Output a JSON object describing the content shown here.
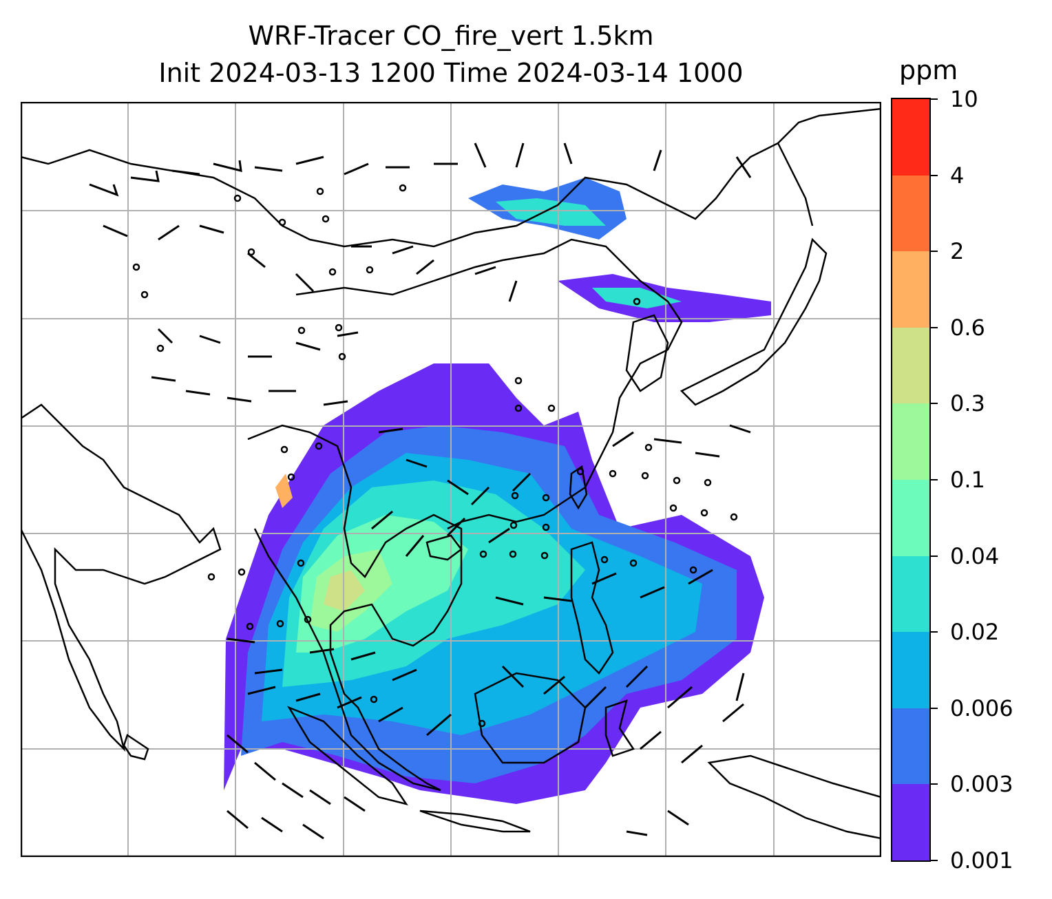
{
  "title": {
    "line1": "WRF-Tracer CO_fire_vert 1.5km",
    "line2": "Init 2024-03-13 1200 Time 2024-03-14 1000"
  },
  "colorbar": {
    "unit": "ppm",
    "levels": [
      "0.001",
      "0.003",
      "0.006",
      "0.02",
      "0.04",
      "0.1",
      "0.3",
      "0.6",
      "2",
      "4",
      "10"
    ],
    "colors": [
      "#6a2cf5",
      "#3877f0",
      "#0fb2e6",
      "#2de0d0",
      "#6cfbba",
      "#9cf89a",
      "#cfe188",
      "#ffb061",
      "#ff7035",
      "#ff2a18"
    ]
  },
  "map": {
    "grid": "on",
    "coastline_color": "#000000",
    "grid_color": "#b0b0b0"
  }
}
